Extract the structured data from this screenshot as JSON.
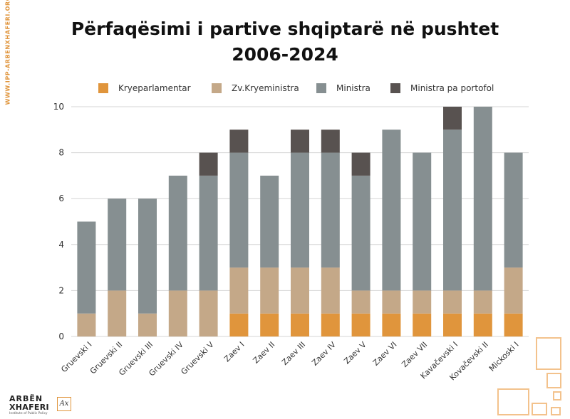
{
  "side_text": "WWW.IPP-ARBENXHAFERI.ORG",
  "chart_data": {
    "type": "bar",
    "stacked": true,
    "title_line1": "Përfaqësimi i partive shqiptarë në pushtet",
    "title_line2": "2006-2024",
    "xlabel": "",
    "ylabel": "",
    "ylim": [
      0,
      10
    ],
    "yticks": [
      0,
      2,
      4,
      6,
      8,
      10
    ],
    "grid": true,
    "legend_position": "top",
    "categories": [
      "Gruevski I",
      "Gruevski II",
      "Gruevski III",
      "Gruevski IV",
      "Gruevski V",
      "Zaev I",
      "Zaev II",
      "Zaev III",
      "Zaev IV",
      "Zaev V",
      "Zaev VI",
      "Zaev VII",
      "Kavačevski I",
      "Kovačevski II",
      "Mickoski I"
    ],
    "series": [
      {
        "name": "Kryeparlamentar",
        "color": "#e0953c",
        "values": [
          0,
          0,
          0,
          0,
          0,
          1,
          1,
          1,
          1,
          1,
          1,
          1,
          1,
          1,
          1
        ]
      },
      {
        "name": "Zv.Kryeministra",
        "color": "#c4a888",
        "values": [
          1,
          2,
          1,
          2,
          2,
          2,
          2,
          2,
          2,
          1,
          1,
          1,
          1,
          1,
          2
        ]
      },
      {
        "name": "Ministra",
        "color": "#868f91",
        "values": [
          4,
          4,
          5,
          5,
          5,
          5,
          4,
          5,
          5,
          5,
          7,
          6,
          7,
          8,
          5
        ]
      },
      {
        "name": "Ministra pa portofol",
        "color": "#585250",
        "values": [
          0,
          0,
          0,
          0,
          1,
          1,
          0,
          1,
          1,
          1,
          0,
          0,
          1,
          0,
          0
        ]
      }
    ]
  }
}
